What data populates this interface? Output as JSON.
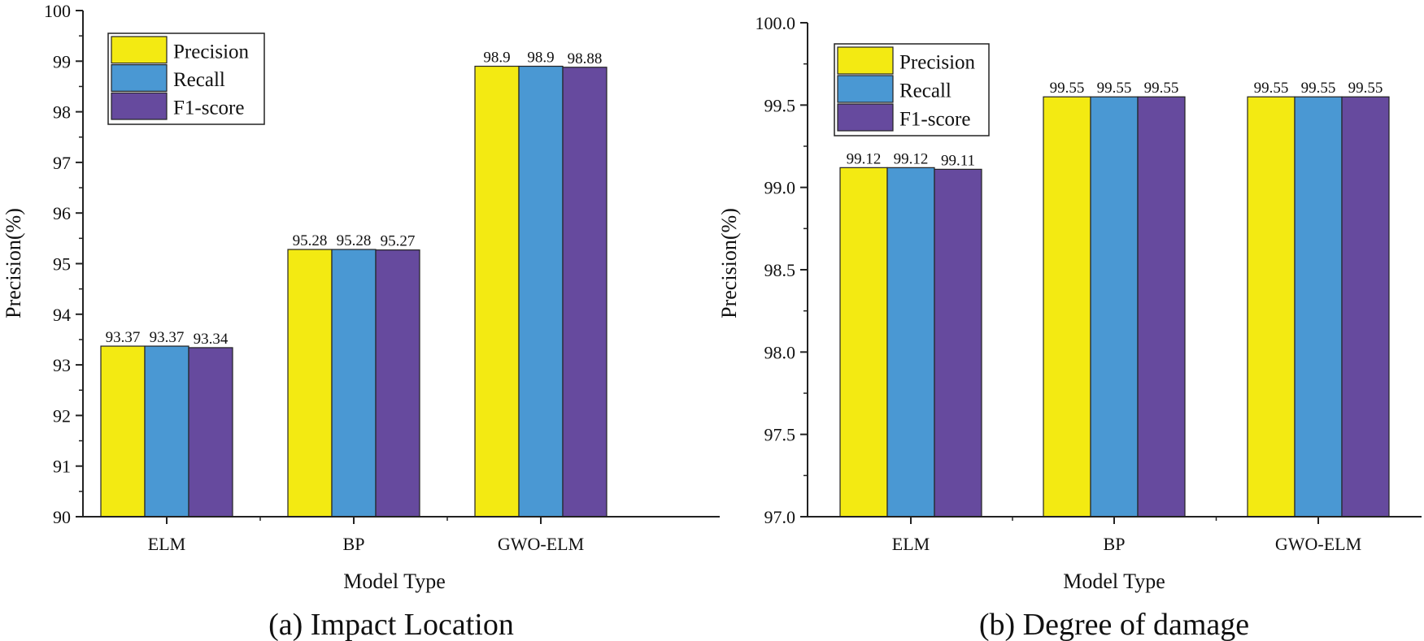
{
  "colors": {
    "Precision": "#f3ea12",
    "Recall": "#4a98d3",
    "F1-score": "#664a9e"
  },
  "chart_data": [
    {
      "type": "bar",
      "caption": "(a) Impact Location",
      "xlabel": "Model Type",
      "ylabel": "Precision(%)",
      "ylim": [
        90,
        100
      ],
      "yticks": [
        "90",
        "91",
        "92",
        "93",
        "94",
        "95",
        "96",
        "97",
        "98",
        "99",
        "100"
      ],
      "categories": [
        "ELM",
        "BP",
        "GWO-ELM"
      ],
      "series": [
        {
          "name": "Precision",
          "values": [
            93.37,
            95.28,
            98.9
          ]
        },
        {
          "name": "Recall",
          "values": [
            93.37,
            95.28,
            98.9
          ]
        },
        {
          "name": "F1-score",
          "values": [
            93.34,
            95.27,
            98.88
          ]
        }
      ],
      "value_labels": [
        [
          "93.37",
          "95.28",
          "98.9"
        ],
        [
          "93.37",
          "95.28",
          "98.9"
        ],
        [
          "93.34",
          "95.27",
          "98.88"
        ]
      ],
      "legend_position": "top-left"
    },
    {
      "type": "bar",
      "caption": "(b) Degree of damage",
      "xlabel": "Model Type",
      "ylabel": "Precision(%)",
      "ylim": [
        97.0,
        100.0
      ],
      "yticks": [
        "97.0",
        "97.5",
        "98.0",
        "98.5",
        "99.0",
        "99.5",
        "100.0"
      ],
      "categories": [
        "ELM",
        "BP",
        "GWO-ELM"
      ],
      "series": [
        {
          "name": "Precision",
          "values": [
            99.12,
            99.55,
            99.55
          ]
        },
        {
          "name": "Recall",
          "values": [
            99.12,
            99.55,
            99.55
          ]
        },
        {
          "name": "F1-score",
          "values": [
            99.11,
            99.55,
            99.55
          ]
        }
      ],
      "value_labels": [
        [
          "99.12",
          "99.55",
          "99.55"
        ],
        [
          "99.12",
          "99.55",
          "99.55"
        ],
        [
          "99.11",
          "99.55",
          "99.55"
        ]
      ],
      "legend_position": "top-left"
    }
  ]
}
